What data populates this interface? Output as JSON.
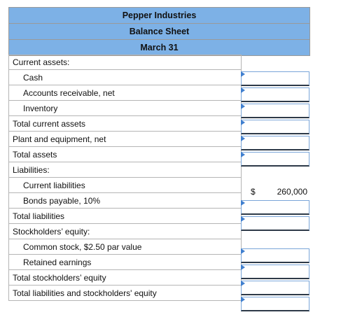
{
  "header": {
    "company": "Pepper Industries",
    "statement": "Balance Sheet",
    "date": "March 31"
  },
  "rows": [
    {
      "label": "Current assets:",
      "indent": false,
      "cell": "none"
    },
    {
      "label": "Cash",
      "indent": true,
      "cell": "input"
    },
    {
      "label": "Accounts receivable, net",
      "indent": true,
      "cell": "input"
    },
    {
      "label": "Inventory",
      "indent": true,
      "cell": "input"
    },
    {
      "label": "Total current assets",
      "indent": false,
      "cell": "input"
    },
    {
      "label": "Plant and equipment, net",
      "indent": false,
      "cell": "input"
    },
    {
      "label": "Total assets",
      "indent": false,
      "cell": "input"
    },
    {
      "label": "Liabilities:",
      "indent": false,
      "cell": "none"
    },
    {
      "label": "Current liabilities",
      "indent": true,
      "cell": "static",
      "currency": "$",
      "value": "260,000"
    },
    {
      "label": "Bonds payable, 10%",
      "indent": true,
      "cell": "input"
    },
    {
      "label": "Total liabilities",
      "indent": false,
      "cell": "input"
    },
    {
      "label": "Stockholders’ equity:",
      "indent": false,
      "cell": "none"
    },
    {
      "label": "Common stock, $2.50 par value",
      "indent": true,
      "cell": "input"
    },
    {
      "label": "Retained earnings",
      "indent": true,
      "cell": "input"
    },
    {
      "label": "Total stockholders’ equity",
      "indent": false,
      "cell": "input"
    },
    {
      "label": "Total liabilities and stockholders' equity",
      "indent": false,
      "cell": "input"
    }
  ]
}
